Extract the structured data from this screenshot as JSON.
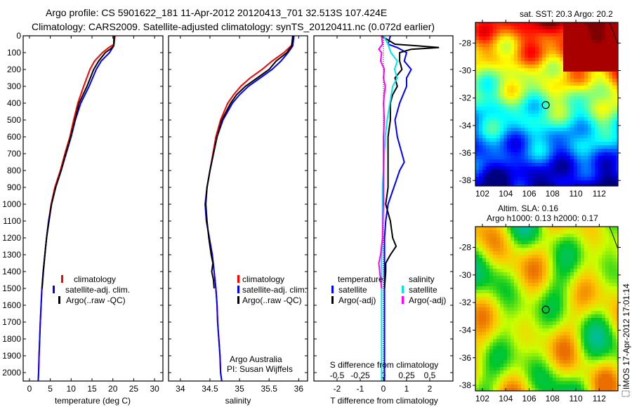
{
  "title": {
    "line1": "Argo profile: CS 5901622_181 11-Apr-2012 20120413_701 32.513S 107.424E",
    "line2": "Climatology: CARS2009. Satellite-adjusted climatology: synTS_20120411.nc (0.072d earlier)"
  },
  "colors": {
    "red": "#ff0000",
    "blue": "#0000ff",
    "black": "#000000",
    "cyan": "#00e5ee",
    "magenta": "#ff00ff"
  },
  "chart_data": [
    {
      "type": "line",
      "name": "temperature",
      "xlabel": "temperature (deg C)",
      "xlim": [
        -1.5,
        32
      ],
      "xticks": [
        0,
        5,
        10,
        15,
        20,
        25,
        30
      ],
      "ylim": [
        0,
        2050
      ],
      "yticks": [
        0,
        100,
        200,
        300,
        400,
        500,
        600,
        700,
        800,
        900,
        1000,
        1100,
        1200,
        1300,
        1400,
        1500,
        1600,
        1700,
        1800,
        1900,
        2000
      ],
      "legend": [
        "climatology",
        "satellite-adj. clim.",
        "Argo(..raw -QC)"
      ],
      "series": [
        {
          "name": "climatology",
          "color": "red",
          "depth": [
            0,
            50,
            70,
            100,
            150,
            200,
            300,
            400,
            500,
            600,
            700,
            800,
            900,
            1000,
            1100,
            1200,
            1300,
            1400,
            1500,
            1600,
            1700,
            1800,
            1900,
            2000,
            2050
          ],
          "values": [
            20.5,
            20.3,
            19,
            17.5,
            15.6,
            14.5,
            13,
            11.6,
            10.6,
            9.7,
            8.5,
            7.4,
            6.1,
            5.2,
            4.6,
            4.1,
            3.7,
            3.3,
            3.0,
            2.8,
            2.6,
            2.45,
            2.3,
            2.2,
            2.1
          ]
        },
        {
          "name": "satellite-adj. clim.",
          "color": "blue",
          "depth": [
            0,
            60,
            80,
            100,
            150,
            200,
            300,
            400,
            500,
            600,
            700,
            800,
            900,
            1000,
            1100,
            1200,
            1300,
            1400,
            1500,
            1600,
            1700,
            1800,
            1900,
            2000,
            2050
          ],
          "values": [
            20.3,
            20.2,
            19.7,
            19.2,
            17.2,
            16,
            14.3,
            12.3,
            11,
            10,
            8.8,
            7.6,
            6.3,
            5.3,
            4.6,
            4.1,
            3.7,
            3.3,
            3.0,
            2.8,
            2.6,
            2.45,
            2.3,
            2.2,
            2.1
          ]
        },
        {
          "name": "Argo(..raw -QC)",
          "color": "black",
          "depth": [
            0,
            60,
            75,
            100,
            150,
            200,
            300,
            400,
            500,
            600,
            700,
            800,
            900,
            1000,
            1100,
            1200,
            1300,
            1400,
            1500
          ],
          "values": [
            20.3,
            20.2,
            19.6,
            18.2,
            16.6,
            15.4,
            13.8,
            11.9,
            10.9,
            9.9,
            8.7,
            7.6,
            6.3,
            5.3,
            4.7,
            4.1,
            3.7,
            3.35,
            3.05
          ]
        }
      ]
    },
    {
      "type": "line",
      "name": "salinity",
      "xlabel": "salinity",
      "xlim": [
        33.8,
        36.15
      ],
      "xticks": [
        34,
        34.5,
        35,
        35.5,
        36
      ],
      "ylim": [
        0,
        2050
      ],
      "legend": [
        "climatology",
        "satellite-adj. clim.",
        "Argo(..raw -QC)"
      ],
      "annotation": [
        "Argo Australia",
        "PI: Susan Wijffels"
      ],
      "series": [
        {
          "name": "climatology",
          "color": "red",
          "depth": [
            0,
            50,
            100,
            150,
            200,
            250,
            300,
            350,
            400,
            500,
            600,
            700,
            800,
            900,
            1000,
            1100,
            1200,
            1300,
            1400,
            1500,
            1600,
            1700,
            1800,
            1900,
            2000,
            2050
          ],
          "values": [
            35.9,
            35.9,
            35.75,
            35.55,
            35.38,
            35.18,
            35.02,
            34.9,
            34.8,
            34.68,
            34.6,
            34.55,
            34.5,
            34.45,
            34.42,
            34.44,
            34.49,
            34.54,
            34.57,
            34.6,
            34.62,
            34.63,
            34.65,
            34.67,
            34.68,
            34.7
          ]
        },
        {
          "name": "satellite-adj. clim.",
          "color": "blue",
          "depth": [
            0,
            60,
            100,
            150,
            200,
            250,
            300,
            350,
            400,
            500,
            600,
            700,
            800,
            900,
            1000,
            1100,
            1200,
            1300,
            1400,
            1500,
            1600,
            1700,
            1800,
            1900,
            2000,
            2050
          ],
          "values": [
            35.92,
            35.9,
            35.82,
            35.7,
            35.55,
            35.35,
            35.15,
            35.0,
            34.88,
            34.72,
            34.62,
            34.56,
            34.5,
            34.45,
            34.42,
            34.44,
            34.49,
            34.54,
            34.57,
            34.6,
            34.62,
            34.63,
            34.65,
            34.67,
            34.68,
            34.7
          ]
        },
        {
          "name": "Argo(..raw -QC)",
          "color": "black",
          "depth": [
            0,
            60,
            100,
            150,
            200,
            250,
            300,
            350,
            400,
            500,
            600,
            700,
            800,
            900,
            1000,
            1100,
            1200,
            1300,
            1350,
            1400,
            1450,
            1500
          ],
          "values": [
            35.9,
            35.88,
            35.8,
            35.62,
            35.5,
            35.3,
            35.1,
            34.95,
            34.85,
            34.7,
            34.62,
            34.56,
            34.5,
            34.45,
            34.43,
            34.45,
            34.48,
            34.52,
            34.55,
            34.53,
            34.56,
            34.57
          ]
        }
      ]
    },
    {
      "type": "line",
      "name": "differences",
      "xlabel": "T difference from climatology",
      "xlim": [
        -3,
        3
      ],
      "xticks": [
        -2,
        -1,
        0,
        1,
        2
      ],
      "x2label": "S difference from climatology",
      "x2lim": [
        -0.75,
        0.75
      ],
      "x2ticks": [
        -0.5,
        -0.25,
        0,
        0.25,
        0.5
      ],
      "x2ticklabels": [
        "-0.5",
        "-0.25",
        "0",
        "0.25",
        "0.5"
      ],
      "ylim": [
        0,
        2050
      ],
      "legend": {
        "temperature": "temperature",
        "salinity": "salinity",
        "t_sat": "satellite",
        "t_argo": "Argo(-adj)",
        "s_sat": "satellite",
        "s_argo": "Argo(-adj)"
      },
      "series": [
        {
          "name": "T satellite",
          "color": "blue",
          "axis": "T",
          "depth": [
            0,
            50,
            70,
            100,
            150,
            200,
            250,
            300,
            400,
            500,
            600,
            700,
            750,
            800,
            900,
            1000,
            1100,
            1200,
            1300,
            1400,
            1500,
            1600,
            1700,
            1800,
            1900,
            2000,
            2050
          ],
          "values": [
            0.3,
            0.2,
            0.6,
            1.0,
            0.9,
            1.2,
            1.0,
            1.0,
            0.7,
            0.5,
            0.6,
            0.8,
            0.9,
            0.7,
            0.45,
            0.2,
            0.1,
            0.05,
            0.05,
            0.05,
            0.05,
            0.05,
            0.05,
            0.05,
            0.05,
            0.05,
            0.05
          ]
        },
        {
          "name": "T Argo(-adj)",
          "color": "black",
          "axis": "T",
          "depth": [
            0,
            50,
            60,
            70,
            80,
            100,
            150,
            200,
            250,
            300,
            350,
            400,
            500,
            600,
            700,
            800,
            900,
            1000,
            1100,
            1200,
            1250,
            1300,
            1350,
            1400,
            1500
          ],
          "values": [
            -0.1,
            0.5,
            1.5,
            2.4,
            1.2,
            0.7,
            0.7,
            0.8,
            0.5,
            0.6,
            0.4,
            0.3,
            0.3,
            0.2,
            0.2,
            0.2,
            0.2,
            0.1,
            0.3,
            0.4,
            0.55,
            0.3,
            0.1,
            0.1,
            0.05
          ]
        },
        {
          "name": "S satellite",
          "color": "cyan",
          "axis": "S",
          "depth": [
            0,
            50,
            100,
            150,
            200,
            250,
            300,
            400,
            500,
            600,
            700,
            800,
            900,
            1000,
            1100,
            1200,
            1300,
            1400,
            1500,
            1600,
            1700,
            1800,
            1900,
            2000,
            2050
          ],
          "values": [
            0.0,
            0.05,
            0.08,
            0.15,
            0.12,
            0.15,
            0.1,
            0.07,
            0.04,
            0.02,
            0.01,
            0.0,
            -0.01,
            -0.01,
            -0.01,
            -0.01,
            -0.02,
            -0.02,
            -0.02,
            -0.02,
            -0.02,
            -0.02,
            -0.02,
            -0.02,
            -0.02
          ]
        },
        {
          "name": "S Argo(-adj)",
          "color": "magenta",
          "axis": "S",
          "depth": [
            0,
            50,
            80,
            100,
            150,
            200,
            250,
            300,
            400,
            500,
            600,
            800,
            1000,
            1200,
            1300,
            1350,
            1400,
            1500
          ],
          "values": [
            -0.02,
            -0.01,
            -0.05,
            -0.02,
            -0.03,
            0.01,
            0.0,
            0.02,
            0.0,
            0.01,
            0.0,
            0.0,
            0.0,
            -0.01,
            -0.03,
            -0.05,
            -0.04,
            -0.02
          ]
        }
      ]
    },
    {
      "type": "heatmap",
      "name": "sst-map",
      "title": "sat. SST: 20.3 Argo: 20.2",
      "xlim": [
        101.4,
        113.6
      ],
      "xticks": [
        102,
        104,
        106,
        108,
        110,
        112
      ],
      "ylim": [
        -38.4,
        -26.5
      ],
      "yticks": [
        -28,
        -30,
        -32,
        -34,
        -36,
        -38
      ],
      "marker": {
        "lon": 107.42,
        "lat": -32.51
      }
    },
    {
      "type": "heatmap",
      "name": "sla-map",
      "title": "Altim. SLA: 0.16",
      "subtitle": "Argo h1000: 0.13 h2000: 0.17",
      "xlim": [
        101.4,
        113.6
      ],
      "xticks": [
        102,
        104,
        106,
        108,
        110,
        112
      ],
      "ylim": [
        -38.4,
        -26.5
      ],
      "yticks": [
        -28,
        -30,
        -32,
        -34,
        -36,
        -38
      ],
      "marker": {
        "lon": 107.42,
        "lat": -32.51
      }
    }
  ],
  "footer": {
    "stamp": "IMOS 17-Apr-2012 17:01:14"
  }
}
